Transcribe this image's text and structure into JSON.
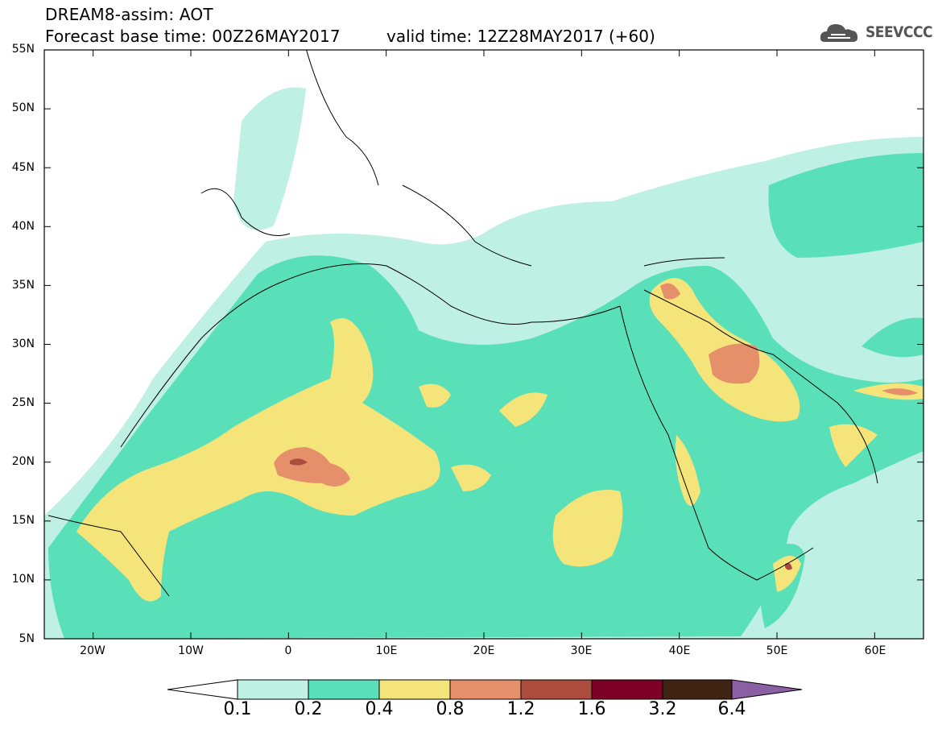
{
  "title": {
    "line1": "DREAM8-assim: AOT",
    "line2": "Forecast base time: 00Z26MAY2017",
    "valid": "valid time: 12Z28MAY2017 (+60)"
  },
  "logo": {
    "text": "SEEVCCC",
    "icon": "cloud-logo-icon"
  },
  "map": {
    "variable": "AOT",
    "projection": "lat-lon",
    "lon_range": [
      -25,
      65
    ],
    "lat_range": [
      5,
      55
    ],
    "lat_ticks": [
      "5N",
      "10N",
      "15N",
      "20N",
      "25N",
      "30N",
      "35N",
      "40N",
      "45N",
      "50N",
      "55N"
    ],
    "lon_ticks": [
      "20W",
      "10W",
      "0",
      "10E",
      "20E",
      "30E",
      "40E",
      "50E",
      "60E"
    ],
    "grid": false
  },
  "colorbar": {
    "levels": [
      "0.1",
      "0.2",
      "0.4",
      "0.8",
      "1.2",
      "1.6",
      "3.2",
      "6.4"
    ],
    "colors": [
      "#ffffff",
      "#bff0e4",
      "#59e0b8",
      "#f5e47a",
      "#e5906a",
      "#ac4c3e",
      "#7d0026",
      "#3f2414",
      "#8a5fa4"
    ]
  }
}
